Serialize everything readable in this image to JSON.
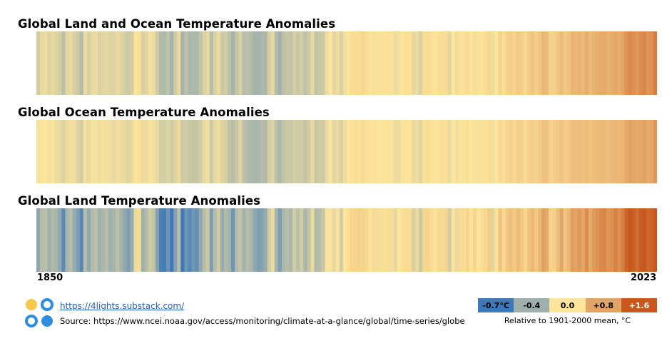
{
  "footer": {
    "link": "https://4lights.substack.com/",
    "source": "Source: https://www.ncei.noaa.gov/access/monitoring/climate-at-a-glance/global/time-series/globe"
  },
  "colors": {
    "scale": [
      "#3d79b8",
      "#9fb0ad",
      "#fde59c",
      "#e3a566",
      "#c8581e"
    ],
    "logo": [
      "#f6c94e",
      "#2d8ee0"
    ]
  },
  "legend": {
    "stops": [
      {
        "value": -0.7,
        "label": "-0.7°C",
        "text_color": "#000000"
      },
      {
        "value": -0.4,
        "label": "-0.4",
        "text_color": "#000000"
      },
      {
        "value": 0.0,
        "label": "0.0",
        "text_color": "#000000"
      },
      {
        "value": 0.8,
        "label": "+0.8",
        "text_color": "#000000"
      },
      {
        "value": 1.6,
        "label": "+1.6",
        "text_color": "#ffffff"
      }
    ],
    "note": "Relative to 1901-2000 mean, °C"
  },
  "chart_data": [
    {
      "type": "heatmap",
      "title": "Global Land and Ocean Temperature Anomalies",
      "x_start": 1850,
      "x_end": 2023,
      "xlabel_start": "1850",
      "xlabel_end": "2023",
      "values": [
        -0.18,
        -0.08,
        -0.06,
        -0.13,
        -0.08,
        -0.13,
        -0.18,
        -0.28,
        -0.12,
        -0.08,
        -0.15,
        -0.21,
        -0.31,
        -0.08,
        -0.16,
        -0.09,
        -0.07,
        -0.15,
        -0.12,
        -0.1,
        -0.14,
        -0.13,
        -0.08,
        -0.13,
        -0.18,
        -0.21,
        -0.17,
        0.01,
        0.08,
        -0.15,
        -0.11,
        -0.04,
        -0.07,
        -0.2,
        -0.32,
        -0.33,
        -0.26,
        -0.38,
        -0.2,
        -0.1,
        -0.38,
        -0.27,
        -0.35,
        -0.34,
        -0.35,
        -0.26,
        -0.15,
        -0.09,
        -0.3,
        -0.15,
        -0.08,
        -0.21,
        -0.19,
        -0.29,
        -0.38,
        -0.24,
        -0.16,
        -0.3,
        -0.28,
        -0.32,
        -0.37,
        -0.38,
        -0.35,
        -0.34,
        -0.17,
        -0.1,
        -0.31,
        -0.39,
        -0.27,
        -0.24,
        -0.26,
        -0.17,
        -0.22,
        -0.19,
        -0.27,
        -0.21,
        -0.09,
        -0.25,
        -0.23,
        -0.21,
        -0.06,
        0.0,
        -0.11,
        -0.06,
        -0.15,
        -0.04,
        0.03,
        0.1,
        0.13,
        0.12,
        0.16,
        0.1,
        0.02,
        0.08,
        -0.03,
        0.04,
        0.05,
        0.06,
        -0.03,
        -0.07,
        -0.04,
        0.03,
        0.07,
        0.06,
        -0.1,
        -0.07,
        -0.15,
        0.1,
        0.12,
        0.06,
        0.01,
        0.08,
        0.09,
        0.11,
        -0.11,
        0.0,
        -0.05,
        0.05,
        0.05,
        0.12,
        0.01,
        0.1,
        -0.02,
        0.04,
        0.1,
        0.19,
        -0.07,
        0.0,
        0.24,
        0.09,
        0.25,
        0.3,
        0.22,
        0.35,
        0.27,
        0.15,
        0.3,
        0.4,
        0.27,
        0.39,
        0.57,
        0.5,
        0.24,
        0.26,
        0.37,
        0.53,
        0.35,
        0.43,
        0.6,
        0.55,
        0.62,
        0.54,
        0.7,
        0.52,
        0.64,
        0.68,
        0.72,
        0.74,
        0.64,
        0.7,
        0.78,
        0.7,
        0.8,
        0.98,
        1.08,
        1.02,
        0.93,
        1.05,
        1.12,
        0.96,
        1.02,
        1.22
      ]
    },
    {
      "type": "heatmap",
      "title": "Global Ocean Temperature Anomalies",
      "x_start": 1850,
      "x_end": 2023,
      "values": [
        -0.03,
        -0.01,
        0.0,
        -0.03,
        -0.01,
        -0.06,
        -0.08,
        -0.13,
        -0.07,
        -0.04,
        -0.05,
        -0.14,
        -0.18,
        -0.04,
        -0.08,
        -0.03,
        -0.04,
        -0.06,
        -0.03,
        -0.04,
        -0.05,
        -0.09,
        -0.05,
        -0.06,
        -0.09,
        -0.12,
        -0.08,
        0.03,
        0.06,
        -0.07,
        -0.06,
        -0.02,
        -0.04,
        -0.1,
        -0.18,
        -0.19,
        -0.14,
        -0.2,
        -0.13,
        -0.07,
        -0.21,
        -0.19,
        -0.22,
        -0.24,
        -0.23,
        -0.18,
        -0.1,
        -0.05,
        -0.21,
        -0.1,
        -0.05,
        -0.13,
        -0.16,
        -0.26,
        -0.3,
        -0.22,
        -0.14,
        -0.27,
        -0.32,
        -0.34,
        -0.36,
        -0.35,
        -0.3,
        -0.32,
        -0.18,
        -0.13,
        -0.28,
        -0.33,
        -0.25,
        -0.22,
        -0.23,
        -0.18,
        -0.2,
        -0.19,
        -0.24,
        -0.2,
        -0.1,
        -0.22,
        -0.2,
        -0.21,
        -0.08,
        -0.02,
        -0.12,
        -0.08,
        -0.15,
        -0.06,
        0.0,
        0.05,
        0.1,
        0.08,
        0.14,
        0.08,
        0.02,
        0.06,
        -0.02,
        0.02,
        0.04,
        0.04,
        -0.02,
        -0.06,
        -0.05,
        0.01,
        0.04,
        0.03,
        -0.08,
        -0.06,
        -0.12,
        0.06,
        0.09,
        0.04,
        0.01,
        0.05,
        0.07,
        0.08,
        -0.08,
        -0.01,
        -0.04,
        0.02,
        0.03,
        0.08,
        0.0,
        0.06,
        -0.03,
        0.02,
        0.06,
        0.13,
        -0.04,
        0.0,
        0.17,
        0.07,
        0.19,
        0.22,
        0.18,
        0.27,
        0.22,
        0.14,
        0.24,
        0.31,
        0.23,
        0.31,
        0.44,
        0.4,
        0.25,
        0.27,
        0.32,
        0.42,
        0.33,
        0.38,
        0.47,
        0.45,
        0.49,
        0.44,
        0.53,
        0.43,
        0.5,
        0.53,
        0.55,
        0.56,
        0.5,
        0.55,
        0.6,
        0.56,
        0.62,
        0.74,
        0.82,
        0.78,
        0.73,
        0.78,
        0.83,
        0.72,
        0.77,
        0.93
      ]
    },
    {
      "type": "heatmap",
      "title": "Global Land Temperature Anomalies",
      "x_start": 1850,
      "x_end": 2023,
      "values": [
        -0.45,
        -0.3,
        -0.28,
        -0.4,
        -0.32,
        -0.36,
        -0.45,
        -0.6,
        -0.38,
        -0.3,
        -0.42,
        -0.5,
        -0.62,
        -0.3,
        -0.44,
        -0.32,
        -0.28,
        -0.4,
        -0.35,
        -0.3,
        -0.4,
        -0.36,
        -0.28,
        -0.38,
        -0.45,
        -0.5,
        -0.42,
        -0.08,
        0.1,
        -0.4,
        -0.32,
        -0.2,
        -0.25,
        -0.48,
        -0.65,
        -0.68,
        -0.55,
        -0.72,
        -0.48,
        -0.3,
        -0.7,
        -0.55,
        -0.62,
        -0.55,
        -0.58,
        -0.45,
        -0.3,
        -0.22,
        -0.5,
        -0.3,
        -0.2,
        -0.42,
        -0.32,
        -0.38,
        -0.55,
        -0.32,
        -0.25,
        -0.38,
        -0.3,
        -0.36,
        -0.45,
        -0.5,
        -0.48,
        -0.42,
        -0.2,
        -0.08,
        -0.38,
        -0.5,
        -0.35,
        -0.3,
        -0.34,
        -0.18,
        -0.28,
        -0.2,
        -0.35,
        -0.25,
        -0.08,
        -0.32,
        -0.3,
        -0.22,
        -0.02,
        0.05,
        -0.1,
        -0.02,
        -0.18,
        0.0,
        0.1,
        0.2,
        0.2,
        0.22,
        0.22,
        0.15,
        0.02,
        0.12,
        -0.05,
        0.08,
        0.08,
        0.1,
        -0.05,
        -0.1,
        0.0,
        0.08,
        0.12,
        0.12,
        -0.15,
        -0.08,
        -0.22,
        0.18,
        0.2,
        0.1,
        0.02,
        0.15,
        0.15,
        0.18,
        -0.18,
        0.02,
        -0.08,
        0.12,
        0.1,
        0.2,
        0.04,
        0.18,
        0.0,
        0.1,
        0.18,
        0.32,
        -0.12,
        0.02,
        0.4,
        0.15,
        0.38,
        0.48,
        0.32,
        0.5,
        0.38,
        0.18,
        0.42,
        0.58,
        0.38,
        0.55,
        0.85,
        0.72,
        0.22,
        0.25,
        0.48,
        0.78,
        0.4,
        0.55,
        0.88,
        0.8,
        0.92,
        0.78,
        1.05,
        0.72,
        0.92,
        1.0,
        1.08,
        1.1,
        0.95,
        1.02,
        1.18,
        1.0,
        1.2,
        1.48,
        1.6,
        1.52,
        1.38,
        1.55,
        1.68,
        1.42,
        1.5,
        1.78
      ]
    }
  ]
}
